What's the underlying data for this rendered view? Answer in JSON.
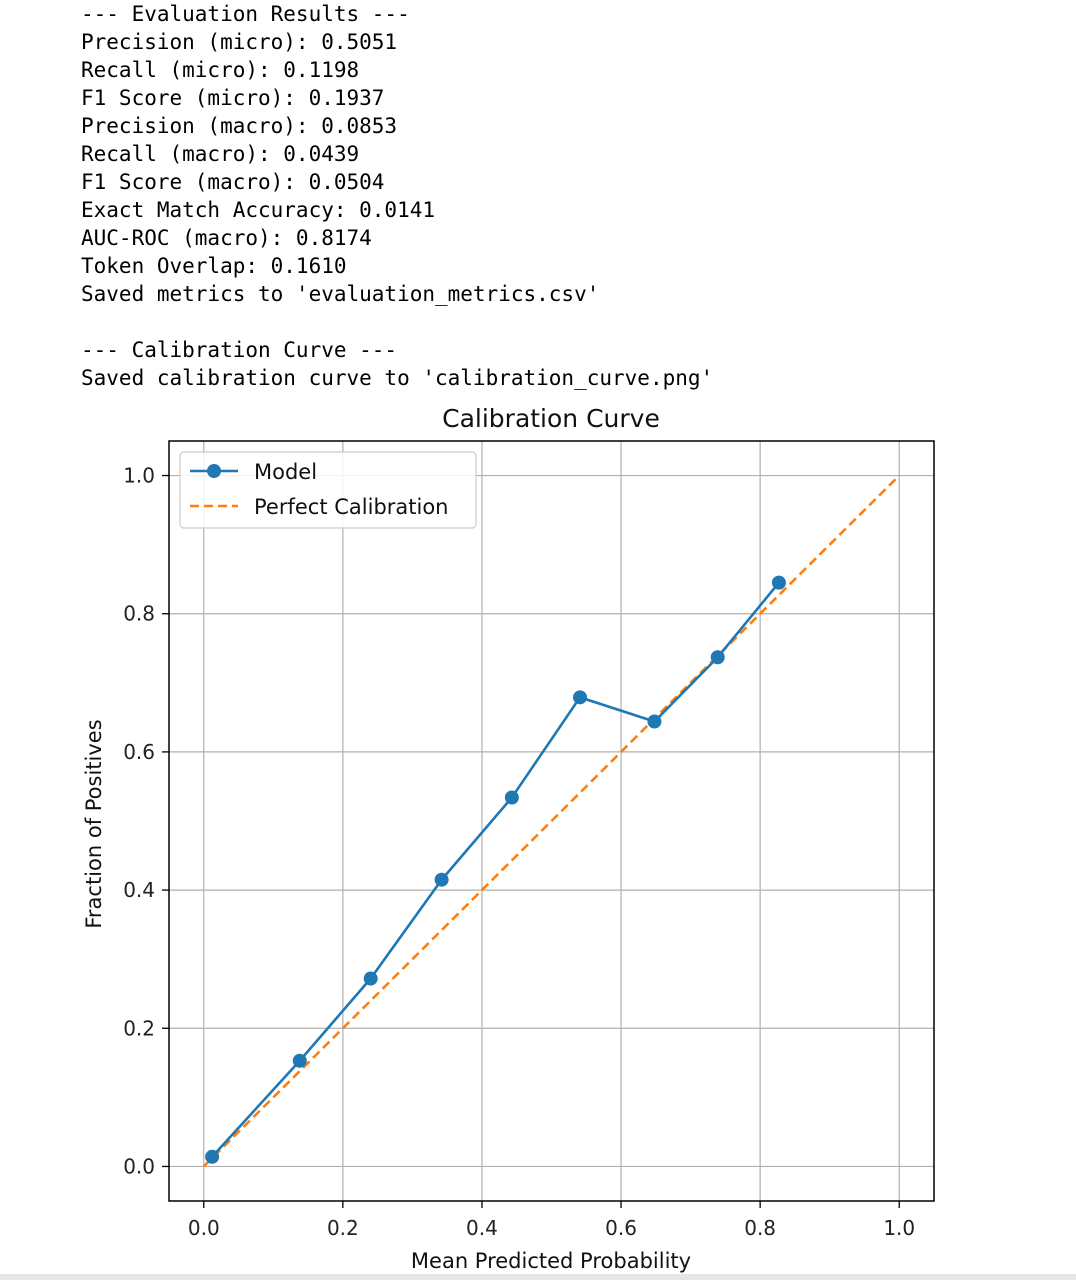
{
  "console_output": {
    "lines": [
      "--- Evaluation Results ---",
      "Precision (micro): 0.5051",
      "Recall (micro): 0.1198",
      "F1 Score (micro): 0.1937",
      "Precision (macro): 0.0853",
      "Recall (macro): 0.0439",
      "F1 Score (macro): 0.0504",
      "Exact Match Accuracy: 0.0141",
      "AUC-ROC (macro): 0.8174",
      "Token Overlap: 0.1610",
      "Saved metrics to 'evaluation_metrics.csv'",
      "",
      "--- Calibration Curve ---",
      "Saved calibration curve to 'calibration_curve.png'"
    ]
  },
  "colors": {
    "model": "#1f77b4",
    "perfect": "#ff7f0e",
    "grid": "#b0b0b0",
    "axes": "#000000"
  },
  "chart_data": {
    "type": "line",
    "title": "Calibration Curve",
    "xlabel": "Mean Predicted Probability",
    "ylabel": "Fraction of Positives",
    "xlim": [
      -0.05,
      1.05
    ],
    "ylim": [
      -0.05,
      1.05
    ],
    "x_ticks": [
      "0.0",
      "0.2",
      "0.4",
      "0.6",
      "0.8",
      "1.0"
    ],
    "y_ticks": [
      "0.0",
      "0.2",
      "0.4",
      "0.6",
      "0.8",
      "1.0"
    ],
    "grid": true,
    "legend_position": "upper-left",
    "series": [
      {
        "name": "Model",
        "style": "solid-with-circle-markers",
        "color": "#1f77b4",
        "x": [
          0.012,
          0.138,
          0.24,
          0.342,
          0.443,
          0.541,
          0.648,
          0.739,
          0.827
        ],
        "y": [
          0.014,
          0.153,
          0.272,
          0.415,
          0.534,
          0.679,
          0.644,
          0.737,
          0.845
        ]
      },
      {
        "name": "Perfect Calibration",
        "style": "dashed",
        "color": "#ff7f0e",
        "x": [
          0.0,
          1.0
        ],
        "y": [
          0.0,
          1.0
        ]
      }
    ]
  }
}
